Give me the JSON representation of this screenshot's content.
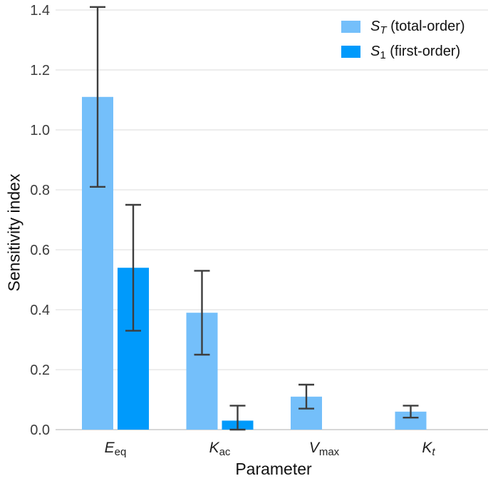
{
  "figure": {
    "background": "#ffffff"
  },
  "chart_data": {
    "type": "bar",
    "title": "",
    "xlabel": "Parameter",
    "ylabel": "Sensitivity index",
    "ylim": [
      0,
      1.4
    ],
    "ytick_labels": [
      "0.0",
      "0.2",
      "0.4",
      "0.6",
      "0.8",
      "1.0",
      "1.2",
      "1.4"
    ],
    "grid": "horizontal",
    "legend_position": "top-right-inside",
    "categories": [
      {
        "main": "E",
        "sub": "eq",
        "sub_italic": false
      },
      {
        "main": "K",
        "sub": "ac",
        "sub_italic": false
      },
      {
        "main": "V",
        "sub": "max",
        "sub_italic": false
      },
      {
        "main": "K",
        "sub": "t",
        "sub_italic": true
      }
    ],
    "series": [
      {
        "key": "ST",
        "name_main": "S",
        "name_sub": "T",
        "name_sub_italic": true,
        "label_rest": " (total-order)",
        "color": "#74BFFA",
        "values": [
          1.11,
          0.39,
          0.11,
          0.06
        ],
        "err_low": [
          0.81,
          0.25,
          0.07,
          0.04
        ],
        "err_high": [
          1.41,
          0.53,
          0.15,
          0.08
        ]
      },
      {
        "key": "S1",
        "name_main": "S",
        "name_sub": "1",
        "name_sub_italic": false,
        "label_rest": " (first-order)",
        "color": "#009AFB",
        "values": [
          0.54,
          0.03,
          null,
          null
        ],
        "err_low": [
          0.33,
          0.0,
          null,
          null
        ],
        "err_high": [
          0.75,
          0.08,
          null,
          null
        ]
      }
    ],
    "styles": {
      "grid_color": "#e7e7e7",
      "axis_line_color": "#d7d7d7",
      "error_bar_color": "#3d3d3d",
      "tick_label_color": "#3d3d3d",
      "category_label_color": "#1f1f1f",
      "axis_title_color": "#111111",
      "legend_text_color": "#111111"
    }
  }
}
